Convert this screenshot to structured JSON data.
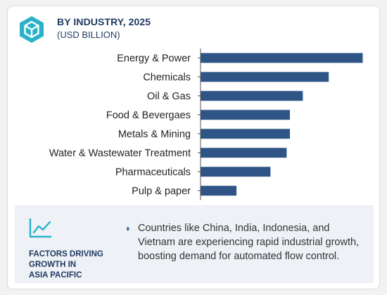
{
  "header": {
    "title": "BY INDUSTRY, 2025",
    "subtitle": "(USD BILLION)",
    "icon": "cube-icon"
  },
  "chart_data": {
    "type": "bar",
    "orientation": "horizontal",
    "categories": [
      "Energy & Power",
      "Chemicals",
      "Oil & Gas",
      "Food & Bevergaes",
      "Metals & Mining",
      "Water & Wastewater Treatment",
      "Pharmaceuticals",
      "Pulp & paper"
    ],
    "values": [
      10.0,
      7.9,
      6.3,
      5.5,
      5.5,
      5.3,
      4.3,
      2.2
    ],
    "xlim": [
      0,
      10
    ],
    "bar_color": "#2e5585",
    "axis_color": "#555555",
    "grid": false,
    "xlabel": "",
    "ylabel": ""
  },
  "factors": {
    "icon": "trend-line-icon",
    "heading_lines": [
      "FACTORS DRIVING",
      "GROWTH IN",
      "ASIA PACIFIC"
    ],
    "bullet": "♦",
    "text": "Countries like China, India, Indonesia, and Vietnam are experiencing rapid industrial growth, boosting demand for automated flow control."
  }
}
